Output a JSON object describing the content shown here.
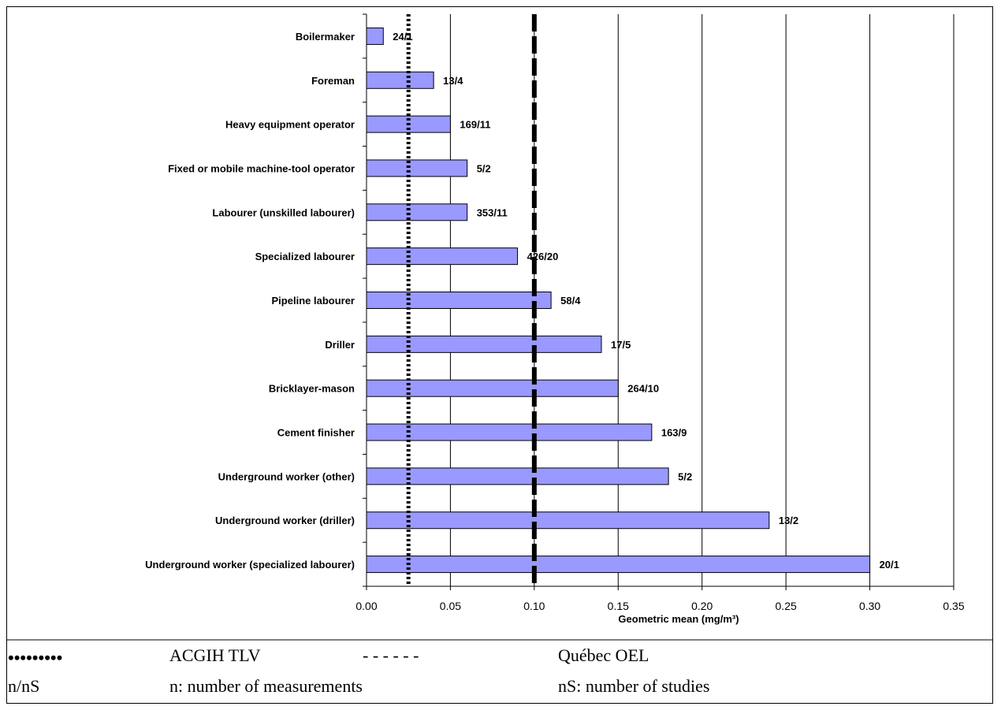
{
  "chart_data": {
    "type": "bar",
    "orientation": "horizontal",
    "categories": [
      "Boilermaker",
      "Foreman",
      "Heavy equipment operator",
      "Fixed or mobile machine-tool  operator",
      "Labourer (unskilled labourer)",
      "Specialized labourer",
      "Pipeline labourer",
      "Driller",
      "Bricklayer-mason",
      "Cement finisher",
      "Underground worker (other)",
      "Underground worker (driller)",
      "Underground worker (specialized labourer)"
    ],
    "values": [
      0.01,
      0.04,
      0.05,
      0.06,
      0.06,
      0.09,
      0.11,
      0.14,
      0.15,
      0.17,
      0.18,
      0.24,
      0.3
    ],
    "data_labels": [
      "24/1",
      "13/4",
      "169/11",
      "5/2",
      "353/11",
      "426/20",
      "58/4",
      "17/5",
      "264/10",
      "163/9",
      "5/2",
      "13/2",
      "20/1"
    ],
    "xlim": [
      0,
      0.35
    ],
    "xticks": [
      0,
      0.05,
      0.1,
      0.15,
      0.2,
      0.25,
      0.3,
      0.35
    ],
    "xtick_labels": [
      "0.00",
      "0.05",
      "0.10",
      "0.15",
      "0.20",
      "0.25",
      "0.30",
      "0.35"
    ],
    "xlabel": "Geometric mean (mg/m³)",
    "grid": "vertical major gridlines",
    "bar_color": "#9999ff",
    "reference_lines": [
      {
        "name": "ACGIH TLV",
        "x": 0.025,
        "style": "dotted"
      },
      {
        "name": "Québec OEL",
        "x": 0.1,
        "style": "dashed"
      }
    ]
  },
  "legend": {
    "row1": {
      "symbol": "•••••••••",
      "label": "ACGIH TLV",
      "symbol2": "- - - - - -",
      "label2": "Québec OEL"
    },
    "row2": {
      "symbol": "n/nS",
      "label": "n: number of measurements",
      "label2": "nS: number of studies"
    }
  }
}
